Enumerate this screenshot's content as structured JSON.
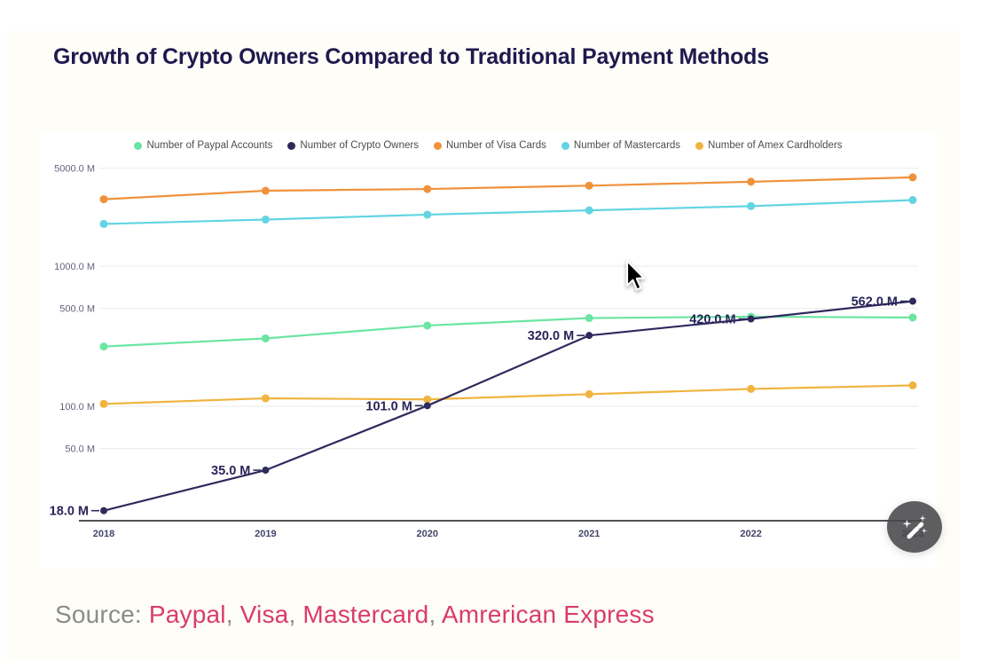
{
  "page": {
    "title": "Growth of Crypto Owners Compared to Traditional Payment Methods"
  },
  "source": {
    "prefix": "Source:",
    "links": [
      "Paypal",
      "Visa",
      "Mastercard",
      "Amrerican Express"
    ],
    "separator": ",",
    "link_color": "#d93b6b"
  },
  "fab": {
    "icon": "magic-wand"
  },
  "chart_data": {
    "type": "line",
    "title": "Growth of Crypto Owners Compared to Traditional Payment Methods",
    "x": [
      "2018",
      "2019",
      "2020",
      "2021",
      "2022",
      "2023"
    ],
    "y_scale": "log",
    "grid": true,
    "legend_position": "top",
    "y_ticks": [
      {
        "value": 5000,
        "label": "5000.0 M"
      },
      {
        "value": 1000,
        "label": "1000.0 M"
      },
      {
        "value": 500,
        "label": "500.0 M"
      },
      {
        "value": 100,
        "label": "100.0 M"
      },
      {
        "value": 50,
        "label": "50.0 M"
      }
    ],
    "unit": "M",
    "series": [
      {
        "name": "Number of Paypal Accounts",
        "color": "#6be5a1",
        "values": [
          267,
          305,
          377,
          426,
          436,
          430
        ]
      },
      {
        "name": "Number of Crypto Owners",
        "color": "#2e2a5c",
        "values": [
          18,
          35,
          101,
          320,
          420,
          562
        ],
        "point_labels": [
          "18.0 M",
          "35.0 M",
          "101.0 M",
          "320.0 M",
          "420.0.M",
          "562.0.M"
        ]
      },
      {
        "name": "Number of Visa Cards",
        "color": "#f0923c",
        "values": [
          3000,
          3450,
          3550,
          3750,
          4000,
          4300
        ]
      },
      {
        "name": "Number of Mastercards",
        "color": "#62d4e3",
        "values": [
          2000,
          2150,
          2330,
          2500,
          2680,
          2960
        ]
      },
      {
        "name": "Number of Amex Cardholders",
        "color": "#f0b43f",
        "values": [
          104,
          114,
          112,
          122,
          133,
          141
        ]
      }
    ]
  }
}
